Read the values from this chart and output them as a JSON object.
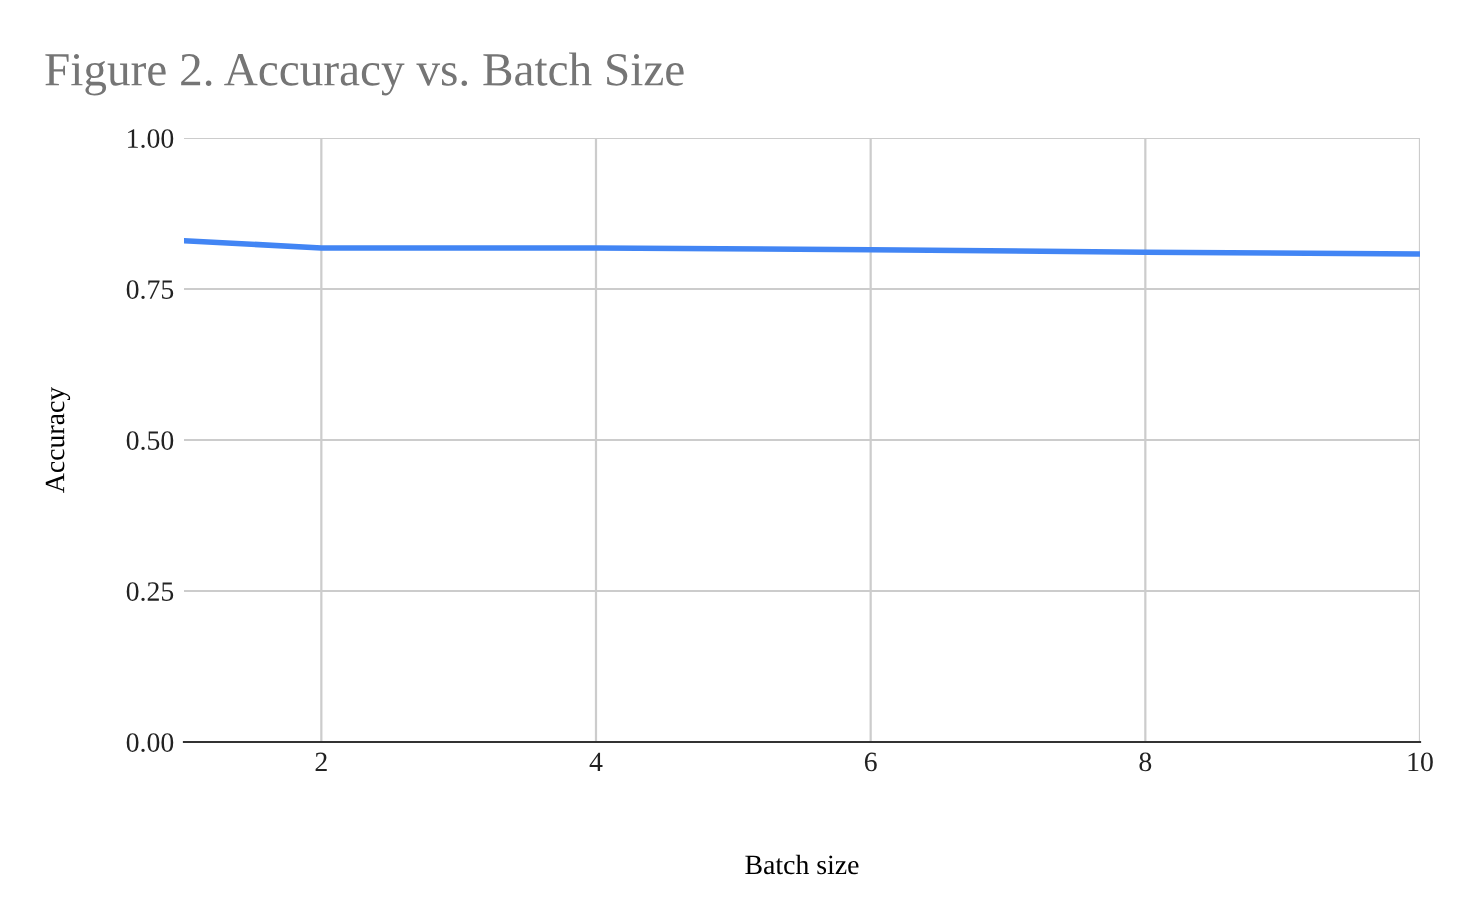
{
  "chart_data": {
    "type": "line",
    "title": "Figure 2. Accuracy vs. Batch Size",
    "xlabel": "Batch size",
    "ylabel": "Accuracy",
    "x": [
      1,
      2,
      4,
      6,
      8,
      10
    ],
    "series": [
      {
        "color": "#4285f4",
        "values": [
          0.83,
          0.818,
          0.818,
          0.815,
          0.811,
          0.808
        ]
      }
    ],
    "xlim": [
      1,
      10
    ],
    "xticks": [
      2,
      4,
      6,
      8,
      10
    ],
    "ylim": [
      0,
      1
    ],
    "yticks": [
      {
        "value": 0,
        "label": "0.00"
      },
      {
        "value": 0.25,
        "label": "0.25"
      },
      {
        "value": 0.5,
        "label": "0.50"
      },
      {
        "value": 0.75,
        "label": "0.75"
      },
      {
        "value": 1,
        "label": "1.00"
      }
    ],
    "grid": true,
    "line_style": "solid"
  }
}
